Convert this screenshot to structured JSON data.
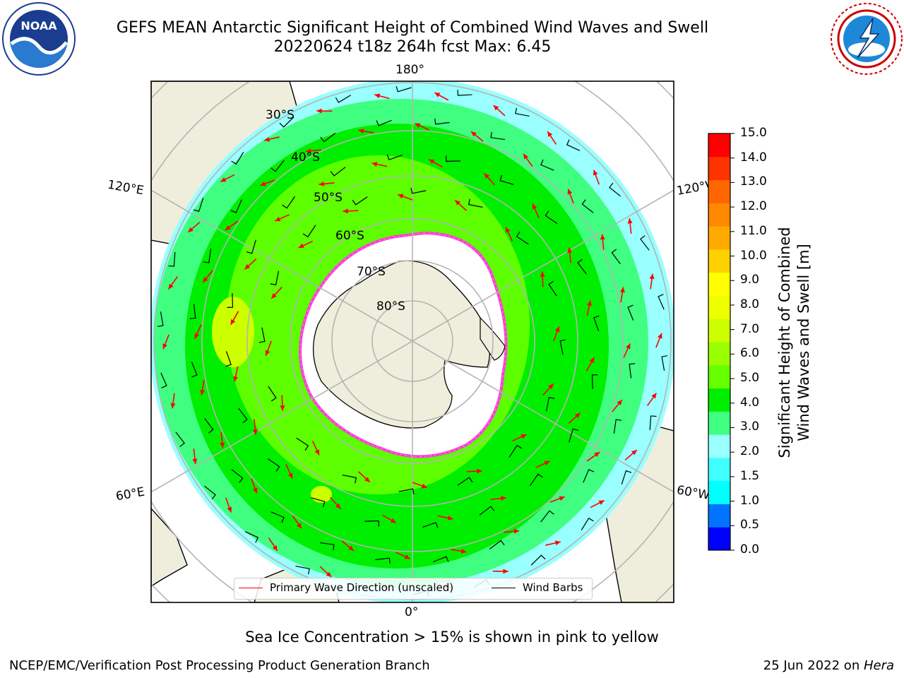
{
  "header": {
    "title_line1": "GEFS MEAN Antarctic Significant Height of Combined Wind Waves and Swell",
    "title_line2": "20220624 t18z 264h fcst   Max: 6.45"
  },
  "logos": {
    "left": {
      "icon": "noaa-logo-icon",
      "text": "NOAA"
    },
    "right": {
      "icon": "nws-logo-icon"
    }
  },
  "map": {
    "projection": "south-polar-stereographic",
    "longitude_labels": [
      "180°",
      "120°E",
      "120°W",
      "60°E",
      "60°W",
      "0°"
    ],
    "latitude_labels": [
      "30°S",
      "40°S",
      "50°S",
      "60°S",
      "70°S",
      "80°S"
    ],
    "colors": {
      "land": "#efeedc",
      "ocean_bg": "#ffffff",
      "grid": "#b4b4b4",
      "arrow": "#ff0000",
      "barb": "#000000",
      "ice_edge": "#ff33ff"
    }
  },
  "colorbar": {
    "label": "Significant Height of Combined Wind Waves and Swell [m]",
    "tick_labels": [
      "15.0",
      "14.0",
      "13.0",
      "12.0",
      "11.0",
      "10.0",
      "9.0",
      "8.0",
      "7.0",
      "6.0",
      "5.0",
      "4.0",
      "3.0",
      "2.0",
      "1.5",
      "1.0",
      "0.5",
      "0.0"
    ],
    "bin_colors": [
      "#0000ff",
      "#0073ff",
      "#00ffff",
      "#40ffff",
      "#99ffff",
      "#40ff80",
      "#00ee00",
      "#66ff00",
      "#99ff00",
      "#ccff00",
      "#eeff00",
      "#ffff00",
      "#ffd000",
      "#ffaa00",
      "#ff8800",
      "#ff6600",
      "#ff3300",
      "#ff0000"
    ]
  },
  "legend": {
    "primary_wave": "Primary Wave Direction (unscaled)",
    "wind_barbs": "Wind Barbs"
  },
  "notes": {
    "sea_ice": "Sea Ice Concentration > 15% is shown in pink to yellow"
  },
  "footer": {
    "left": "NCEP/EMC/Verification Post Processing Product Generation Branch",
    "right_prefix": "25 Jun 2022 on ",
    "right_host": "Hera"
  }
}
